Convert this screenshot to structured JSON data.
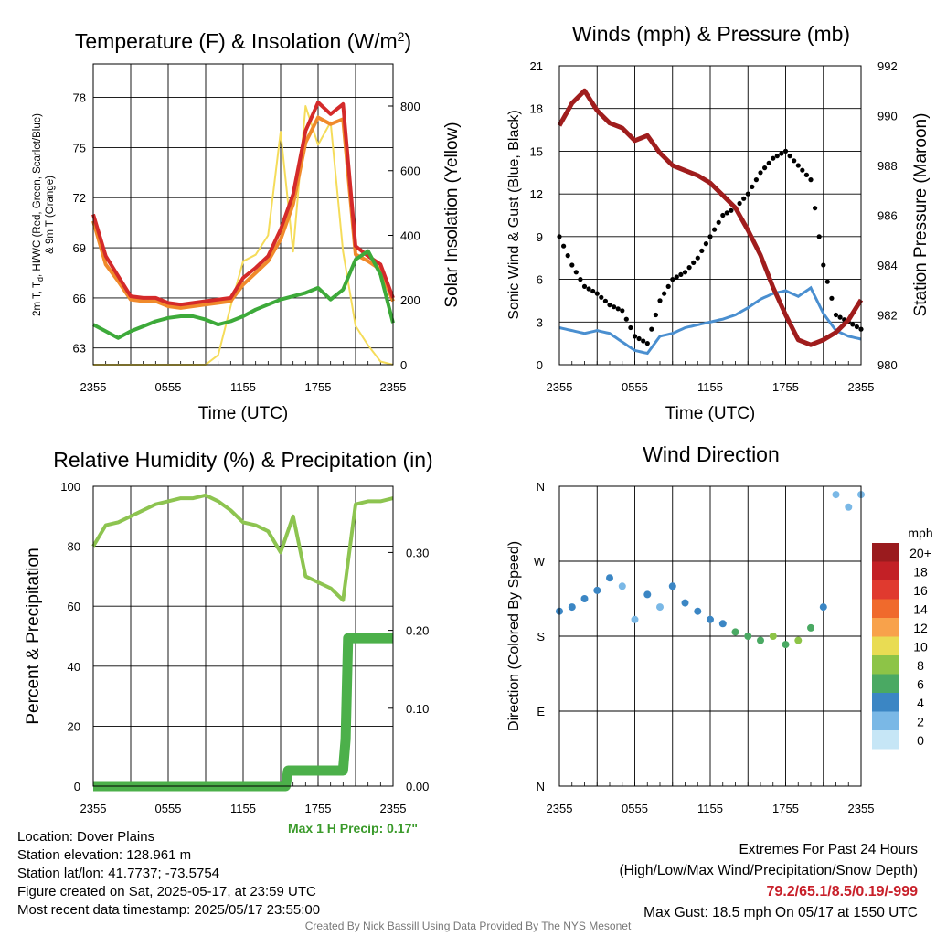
{
  "chart_data": [
    {
      "type": "line",
      "title": "Temperature (F) & Insolation (W/m²)",
      "xlabel": "Time (UTC)",
      "ylabel_left": "2m T, Td, HI/WC (Red, Green, Scarlet/Blue) & 9m T (Orange)",
      "ylabel_right": "Solar Insolation (Yellow)",
      "x_ticks": [
        "2355",
        "0555",
        "1155",
        "1755",
        "2355"
      ],
      "y_left_ticks": [
        63,
        66,
        69,
        72,
        75,
        78
      ],
      "y_left_lim": [
        62,
        80
      ],
      "y_right_ticks": [
        0,
        200,
        400,
        600,
        800
      ],
      "y_right_lim": [
        0,
        930
      ],
      "x_hours": [
        0,
        1,
        2,
        3,
        4,
        5,
        6,
        7,
        8,
        9,
        10,
        11,
        12,
        13,
        14,
        15,
        16,
        17,
        18,
        19,
        20,
        21,
        22,
        23,
        24
      ],
      "series": [
        {
          "name": "2m T",
          "color": "#d42a2a",
          "axis": "left",
          "values": [
            71,
            68.5,
            67.3,
            66.1,
            66,
            66,
            65.7,
            65.6,
            65.7,
            65.8,
            65.9,
            66,
            67.2,
            67.8,
            68.5,
            70.1,
            72.2,
            76,
            77.7,
            77,
            77.6,
            69.1,
            68.5,
            68,
            66
          ]
        },
        {
          "name": "9m T",
          "color": "#f08a2b",
          "axis": "left",
          "values": [
            70.6,
            68,
            67,
            65.9,
            65.8,
            65.8,
            65.5,
            65.4,
            65.5,
            65.6,
            65.7,
            65.8,
            66.8,
            67.5,
            68.2,
            69.5,
            71.6,
            75.3,
            76.8,
            76.4,
            76.7,
            68.6,
            68.2,
            67.7,
            65.8
          ]
        },
        {
          "name": "Td",
          "color": "#3daa3a",
          "axis": "left",
          "values": [
            64.4,
            64,
            63.6,
            64,
            64.3,
            64.6,
            64.8,
            64.9,
            64.9,
            64.7,
            64.4,
            64.6,
            64.9,
            65.3,
            65.6,
            65.9,
            66.1,
            66.3,
            66.6,
            65.9,
            66.5,
            68.3,
            68.8,
            67.4,
            64.5
          ]
        },
        {
          "name": "Solar Insolation",
          "color": "#f5dc5a",
          "axis": "right",
          "values": [
            0,
            0,
            0,
            0,
            0,
            0,
            0,
            0,
            0,
            0,
            30,
            180,
            320,
            340,
            400,
            720,
            350,
            800,
            680,
            750,
            350,
            120,
            60,
            10,
            0
          ]
        }
      ]
    },
    {
      "type": "scatter",
      "title": "Winds (mph) & Pressure (mb)",
      "xlabel": "Time (UTC)",
      "ylabel_left": "Sonic Wind & Gust (Blue, Black)",
      "ylabel_right": "Station Pressure (Maroon)",
      "x_ticks": [
        "2355",
        "0555",
        "1155",
        "1755",
        "2355"
      ],
      "y_left_ticks": [
        0,
        3,
        6,
        9,
        12,
        15,
        18,
        21
      ],
      "y_left_lim": [
        0,
        21
      ],
      "y_right_ticks": [
        980,
        982,
        984,
        986,
        988,
        990,
        992
      ],
      "y_right_lim": [
        980,
        992
      ],
      "x_hours": [
        0,
        1,
        2,
        3,
        4,
        5,
        6,
        7,
        8,
        9,
        10,
        11,
        12,
        13,
        14,
        15,
        16,
        17,
        18,
        19,
        20,
        21,
        22,
        23,
        24
      ],
      "series": [
        {
          "name": "Sonic Wind",
          "color": "#4a8fd0",
          "axis": "left",
          "values": [
            2.6,
            2.4,
            2.2,
            2.4,
            2.2,
            1.6,
            1.0,
            0.8,
            2.0,
            2.2,
            2.6,
            2.8,
            3.0,
            3.2,
            3.5,
            4.0,
            4.6,
            5.0,
            5.2,
            4.8,
            5.4,
            3.6,
            2.4,
            2.0,
            1.8
          ]
        },
        {
          "name": "Gust",
          "color": "#000000",
          "axis": "left",
          "values": [
            9.0,
            7.0,
            5.5,
            5.0,
            4.2,
            3.8,
            2.0,
            1.5,
            4.5,
            6.0,
            6.5,
            7.5,
            9.0,
            10.5,
            11.0,
            12.0,
            13.5,
            14.5,
            15.0,
            14.0,
            13.0,
            7.0,
            3.5,
            3.0,
            2.5
          ]
        },
        {
          "name": "Station Pressure",
          "color": "#a01d1d",
          "axis": "right",
          "values": [
            989.6,
            990.5,
            991.0,
            990.2,
            989.7,
            989.5,
            989.0,
            989.2,
            988.5,
            988.0,
            987.8,
            987.6,
            987.3,
            986.8,
            986.3,
            985.4,
            984.4,
            983.1,
            982.0,
            981.0,
            980.8,
            981.0,
            981.3,
            981.8,
            982.6
          ]
        }
      ]
    },
    {
      "type": "line",
      "title": "Relative Humidity (%) & Precipitation (in)",
      "ylabel_left": "Percent & Precipitation",
      "x_ticks": [
        "2355",
        "0555",
        "1155",
        "1755",
        "2355"
      ],
      "y_left_ticks": [
        0,
        20,
        40,
        60,
        80,
        100
      ],
      "y_left_lim": [
        0,
        100
      ],
      "y_right_ticks": [
        "0.00",
        "0.10",
        "0.20",
        "0.30"
      ],
      "y_right_lim": [
        0,
        0.385
      ],
      "x_hours": [
        0,
        1,
        2,
        3,
        4,
        5,
        6,
        7,
        8,
        9,
        10,
        11,
        12,
        13,
        14,
        15,
        16,
        17,
        18,
        19,
        20,
        21,
        22,
        23,
        24
      ],
      "series": [
        {
          "name": "Relative Humidity",
          "color": "#8dc450",
          "axis": "left",
          "values": [
            80,
            87,
            88,
            90,
            92,
            94,
            95,
            96,
            96,
            97,
            95,
            92,
            88,
            87,
            85,
            78,
            90,
            70,
            68,
            66,
            62,
            94,
            95,
            95,
            96
          ]
        },
        {
          "name": "Precipitation",
          "color": "#4cb04a",
          "axis": "right",
          "x_hours": [
            0,
            15.4,
            15.6,
            20,
            20.2,
            20.4,
            24
          ],
          "values": [
            0,
            0.0,
            0.02,
            0.02,
            0.06,
            0.19,
            0.19
          ]
        }
      ],
      "annotation": "Max 1 H Precip: 0.17\""
    },
    {
      "type": "scatter",
      "title": "Wind Direction",
      "ylabel": "Direction (Colored By Speed)",
      "x_ticks": [
        "2355",
        "0555",
        "1155",
        "1755",
        "2355"
      ],
      "y_ticks": [
        "N",
        "E",
        "S",
        "W",
        "N"
      ],
      "ylim": [
        0,
        360
      ],
      "colorbar": {
        "unit": "mph",
        "labels": [
          "20+",
          "18",
          "16",
          "14",
          "12",
          "10",
          "8",
          "6",
          "4",
          "2",
          "0"
        ],
        "colors": [
          "#9a1b1e",
          "#c32026",
          "#e03a2f",
          "#f06a2c",
          "#f8a24b",
          "#e9dc53",
          "#8dc447",
          "#4aa963",
          "#3b86c4",
          "#7ab8e6",
          "#c6e6f6"
        ]
      },
      "x_hours": [
        0,
        1,
        2,
        3,
        4,
        5,
        6,
        7,
        8,
        9,
        10,
        11,
        12,
        13,
        14,
        15,
        16,
        17,
        18,
        19,
        20,
        21,
        22,
        23,
        24
      ],
      "values": [
        210,
        215,
        225,
        235,
        250,
        240,
        200,
        230,
        215,
        240,
        220,
        210,
        200,
        195,
        185,
        180,
        175,
        180,
        170,
        175,
        190,
        215,
        350,
        335,
        350
      ],
      "speeds": [
        3,
        3,
        4,
        3,
        4,
        1,
        1,
        3,
        2,
        3,
        4,
        4,
        3,
        4,
        5,
        6,
        6,
        7,
        6,
        7,
        6,
        4,
        2,
        2,
        2
      ]
    }
  ],
  "footer": {
    "location": "Location: Dover Plains",
    "elevation": "Station elevation: 128.961 m",
    "latlon": "Station lat/lon: 41.7737; -73.5754",
    "created": "Figure created on Sat, 2025-05-17, at 23:59 UTC",
    "recent": "Most recent data timestamp: 2025/05/17 23:55:00"
  },
  "extremes": {
    "title": "Extremes For Past 24 Hours",
    "subtitle": "(High/Low/Max Wind/Precipitation/Snow Depth)",
    "values": "79.2/65.1/8.5/0.19/-999",
    "gust": "Max Gust: 18.5 mph On 05/17 at 1550 UTC"
  },
  "credit": "Created By Nick Bassill Using Data Provided By The NYS Mesonet"
}
